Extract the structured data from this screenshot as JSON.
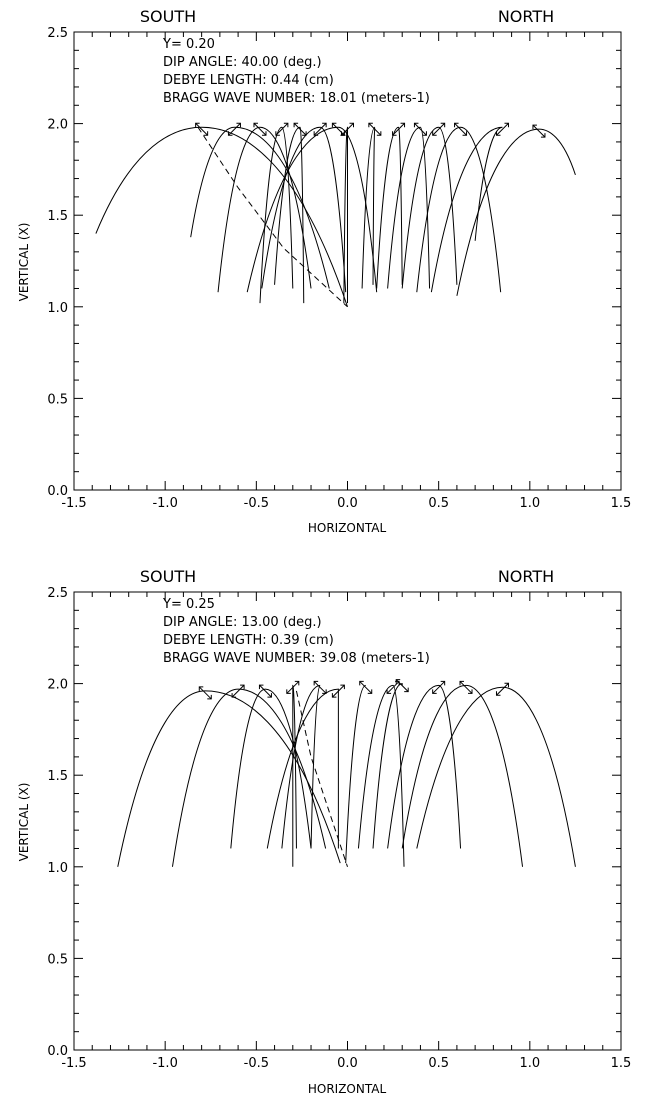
{
  "chart_data": [
    {
      "type": "line",
      "title": "",
      "side_labels": {
        "left": "SOUTH",
        "right": "NORTH"
      },
      "annotations": [
        "Y= 0.20",
        "DIP ANGLE: 40.00 (deg.)",
        "DEBYE LENGTH:  0.44 (cm)",
        "BRAGG WAVE NUMBER: 18.01 (meters-1)"
      ],
      "xlabel": "HORIZONTAL",
      "ylabel": "VERTICAL (X)",
      "xlim": [
        -1.5,
        1.5
      ],
      "ylim": [
        0.0,
        2.5
      ],
      "xticks": [
        "-1.5",
        "-1.0",
        "-0.5",
        "0.0",
        "0.5",
        "1.0",
        "1.5"
      ],
      "yticks": [
        "0.0",
        "0.5",
        "1.0",
        "1.5",
        "2.0",
        "2.5"
      ],
      "grid": false,
      "rays": [
        {
          "start": [
            0.0,
            1.0
          ],
          "peak": [
            -0.8,
            1.98
          ],
          "end": [
            -1.38,
            1.4
          ]
        },
        {
          "start": [
            -0.1,
            1.1
          ],
          "peak": [
            -0.62,
            1.98
          ],
          "end": [
            -0.86,
            1.38
          ]
        },
        {
          "start": [
            -0.2,
            1.1
          ],
          "peak": [
            -0.48,
            1.98
          ],
          "end": [
            -0.71,
            1.08
          ]
        },
        {
          "start": [
            -0.3,
            1.1
          ],
          "peak": [
            -0.36,
            1.98
          ],
          "end": [
            -0.48,
            1.02
          ]
        },
        {
          "start": [
            -0.4,
            1.12
          ],
          "peak": [
            -0.26,
            1.98
          ],
          "end": [
            -0.24,
            1.02
          ]
        },
        {
          "start": [
            -0.47,
            1.1
          ],
          "peak": [
            -0.15,
            1.98
          ],
          "end": [
            -0.01,
            1.08
          ]
        },
        {
          "start": [
            -0.55,
            1.08
          ],
          "peak": [
            -0.05,
            1.98
          ],
          "end": [
            0.16,
            1.08
          ]
        },
        {
          "start": [
            -0.02,
            1.02
          ],
          "peak": [
            0.0,
            1.98
          ],
          "end": [
            0.0,
            1.02
          ]
        },
        {
          "start": [
            0.08,
            1.1
          ],
          "peak": [
            0.15,
            1.98
          ],
          "end": [
            0.14,
            1.12
          ]
        },
        {
          "start": [
            0.16,
            1.1
          ],
          "peak": [
            0.28,
            1.98
          ],
          "end": [
            0.3,
            1.12
          ]
        },
        {
          "start": [
            0.22,
            1.1
          ],
          "peak": [
            0.4,
            1.98
          ],
          "end": [
            0.45,
            1.1
          ]
        },
        {
          "start": [
            0.3,
            1.1
          ],
          "peak": [
            0.5,
            1.98
          ],
          "end": [
            0.6,
            1.12
          ]
        },
        {
          "start": [
            0.38,
            1.08
          ],
          "peak": [
            0.62,
            1.98
          ],
          "end": [
            0.84,
            1.08
          ]
        },
        {
          "start": [
            0.46,
            1.08
          ],
          "peak": [
            0.85,
            1.98
          ],
          "end": [
            0.7,
            1.36
          ]
        },
        {
          "start": [
            0.6,
            1.06
          ],
          "peak": [
            1.05,
            1.97
          ],
          "end": [
            1.25,
            1.72
          ]
        }
      ],
      "dashed": [
        [
          -0.82,
          1.98
        ],
        [
          -0.6,
          1.65
        ],
        [
          -0.35,
          1.32
        ],
        [
          0.0,
          1.0
        ]
      ]
    },
    {
      "type": "line",
      "title": "",
      "side_labels": {
        "left": "SOUTH",
        "right": "NORTH"
      },
      "annotations": [
        "Y= 0.25",
        "DIP ANGLE: 13.00 (deg.)",
        "DEBYE LENGTH:  0.39 (cm)",
        "BRAGG WAVE NUMBER: 39.08 (meters-1)"
      ],
      "xlabel": "HORIZONTAL",
      "ylabel": "VERTICAL (X)",
      "xlim": [
        -1.5,
        1.5
      ],
      "ylim": [
        0.0,
        2.5
      ],
      "xticks": [
        "-1.5",
        "-1.0",
        "-0.5",
        "0.0",
        "0.5",
        "1.0",
        "1.5"
      ],
      "yticks": [
        "0.0",
        "0.5",
        "1.0",
        "1.5",
        "2.0",
        "2.5"
      ],
      "grid": false,
      "rays": [
        {
          "start": [
            -0.04,
            1.02
          ],
          "peak": [
            -0.78,
            1.96
          ],
          "end": [
            -1.26,
            1.0
          ]
        },
        {
          "start": [
            -0.12,
            1.1
          ],
          "peak": [
            -0.6,
            1.97
          ],
          "end": [
            -0.96,
            1.0
          ]
        },
        {
          "start": [
            -0.2,
            1.1
          ],
          "peak": [
            -0.45,
            1.97
          ],
          "end": [
            -0.64,
            1.1
          ]
        },
        {
          "start": [
            -0.28,
            1.1
          ],
          "peak": [
            -0.3,
            1.99
          ],
          "end": [
            -0.3,
            1.0
          ]
        },
        {
          "start": [
            -0.36,
            1.1
          ],
          "peak": [
            -0.15,
            1.99
          ],
          "end": [
            -0.2,
            1.1
          ]
        },
        {
          "start": [
            -0.44,
            1.1
          ],
          "peak": [
            -0.05,
            1.97
          ],
          "end": [
            -0.05,
            1.1
          ]
        },
        {
          "start": [
            -0.01,
            1.02
          ],
          "peak": [
            0.1,
            1.99
          ],
          "end": [
            0.1,
            1.99
          ]
        },
        {
          "start": [
            0.06,
            1.1
          ],
          "peak": [
            0.25,
            1.99
          ],
          "end": [
            0.31,
            1.0
          ]
        },
        {
          "start": [
            0.14,
            1.1
          ],
          "peak": [
            0.3,
            2.0
          ],
          "end": [
            0.3,
            1.99
          ]
        },
        {
          "start": [
            0.22,
            1.1
          ],
          "peak": [
            0.5,
            1.99
          ],
          "end": [
            0.62,
            1.1
          ]
        },
        {
          "start": [
            0.3,
            1.1
          ],
          "peak": [
            0.65,
            1.99
          ],
          "end": [
            0.96,
            1.0
          ]
        },
        {
          "start": [
            0.38,
            1.1
          ],
          "peak": [
            0.85,
            1.98
          ],
          "end": [
            1.25,
            1.0
          ]
        }
      ],
      "dashed": [
        [
          -0.28,
          1.96
        ],
        [
          -0.2,
          1.6
        ],
        [
          -0.1,
          1.3
        ],
        [
          0.0,
          1.0
        ]
      ]
    }
  ]
}
